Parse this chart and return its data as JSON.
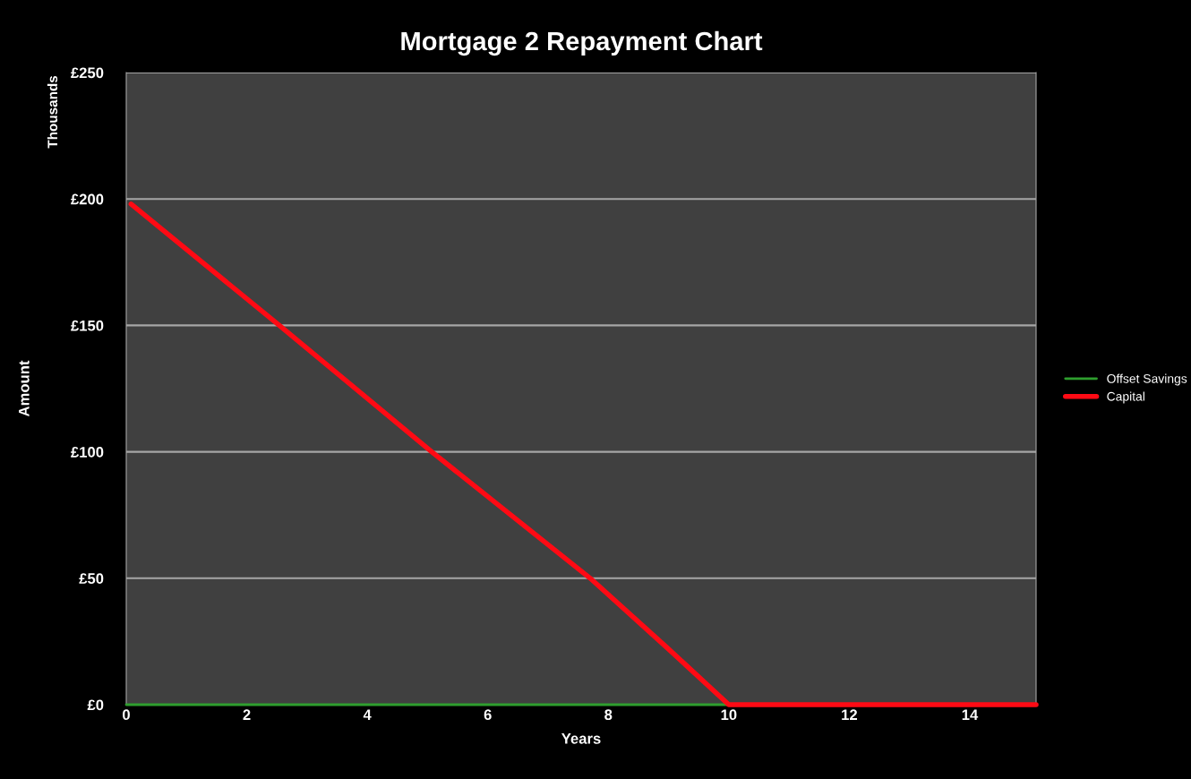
{
  "chart_data": {
    "type": "line",
    "title": "Mortgage 2 Repayment Chart",
    "xlabel": "Years",
    "ylabel": "Amount",
    "annotations": [
      "Thousands"
    ],
    "series": [
      {
        "name": "Offset Savings",
        "color": "#2e9e2e",
        "x": [
          0,
          15.1
        ],
        "values": [
          0,
          0
        ]
      },
      {
        "name": "Capital",
        "color": "#ff0a14",
        "x": [
          0.08,
          2.54,
          5.07,
          7.7,
          9,
          10,
          15.1
        ],
        "values": [
          198,
          150,
          100,
          50,
          22,
          0,
          0
        ]
      }
    ],
    "xlim": [
      0,
      15.1
    ],
    "xticks": [
      0,
      2,
      4,
      6,
      8,
      10,
      12,
      14
    ],
    "ylim": [
      0,
      250
    ],
    "yticks": [
      {
        "value": 0,
        "label": "£0"
      },
      {
        "value": 50,
        "label": "£50"
      },
      {
        "value": 100,
        "label": "£100"
      },
      {
        "value": 150,
        "label": "£150"
      },
      {
        "value": 200,
        "label": "£200"
      },
      {
        "value": 250,
        "label": "£250"
      }
    ],
    "grid": "y",
    "legend": "right",
    "marker": "none",
    "line_style": "solid"
  }
}
